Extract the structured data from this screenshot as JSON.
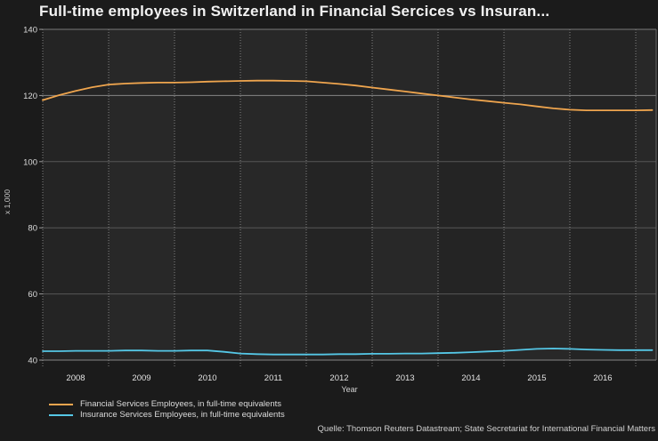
{
  "title": "Full-time employees in Switzerland in Financial Sercices vs Insuran...",
  "source": "Quelle: Thomson Reuters Datastream; State Secretariat for International Financial Matters",
  "colors": {
    "background": "#1b1b1b",
    "plot_background": "#242424",
    "plot_band": "#282828",
    "grid_major": "#565656",
    "grid_bright": "#858585",
    "grid_dotted": "#9a9a9a",
    "frame": "#7a7a7a",
    "financial_line": "#efa54e",
    "insurance_line": "#55c7e6"
  },
  "y_axis": {
    "label": "x 1,000",
    "ticks": [
      "140",
      "120",
      "100",
      "80",
      "60",
      "40"
    ]
  },
  "x_axis": {
    "label": "Year",
    "ticks": [
      "2008",
      "2009",
      "2010",
      "2011",
      "2012",
      "2013",
      "2014",
      "2015",
      "2016"
    ]
  },
  "chart_data": {
    "type": "line",
    "title": "Full-time employees in Switzerland in Financial Sercices vs Insuran...",
    "xlabel": "Year",
    "ylabel": "x 1,000",
    "ylim": [
      40,
      140
    ],
    "xlim": [
      2008,
      2017.31
    ],
    "grid": true,
    "legend_position": "bottom-left",
    "x": [
      2008,
      2008.25,
      2008.5,
      2008.75,
      2009,
      2009.25,
      2009.5,
      2009.75,
      2010,
      2010.25,
      2010.5,
      2010.75,
      2011,
      2011.25,
      2011.5,
      2011.75,
      2012,
      2012.25,
      2012.5,
      2012.75,
      2013,
      2013.25,
      2013.5,
      2013.75,
      2014,
      2014.25,
      2014.5,
      2014.75,
      2015,
      2015.25,
      2015.5,
      2015.75,
      2016,
      2016.25,
      2016.5,
      2016.75,
      2017,
      2017.25
    ],
    "series": [
      {
        "name": "Financial Services Employees, in full-time equivalents",
        "color": "#efa54e",
        "values": [
          118.6,
          120.1,
          121.4,
          122.5,
          123.3,
          123.6,
          123.8,
          123.9,
          123.9,
          124.0,
          124.2,
          124.3,
          124.4,
          124.5,
          124.5,
          124.4,
          124.3,
          123.9,
          123.5,
          123.0,
          122.4,
          121.8,
          121.2,
          120.6,
          120.0,
          119.4,
          118.8,
          118.3,
          117.8,
          117.3,
          116.7,
          116.1,
          115.7,
          115.5,
          115.5,
          115.5,
          115.5,
          115.6
        ]
      },
      {
        "name": "Insurance Services Employees, in full-time equivalents",
        "color": "#55c7e6",
        "values": [
          42.7,
          42.7,
          42.8,
          42.8,
          42.8,
          42.9,
          42.9,
          42.8,
          42.8,
          42.9,
          42.9,
          42.5,
          42.0,
          41.8,
          41.7,
          41.7,
          41.7,
          41.7,
          41.8,
          41.8,
          41.9,
          41.9,
          42.0,
          42.0,
          42.1,
          42.2,
          42.4,
          42.6,
          42.8,
          43.1,
          43.4,
          43.5,
          43.4,
          43.2,
          43.1,
          43.0,
          43.0,
          43.0
        ]
      }
    ]
  }
}
